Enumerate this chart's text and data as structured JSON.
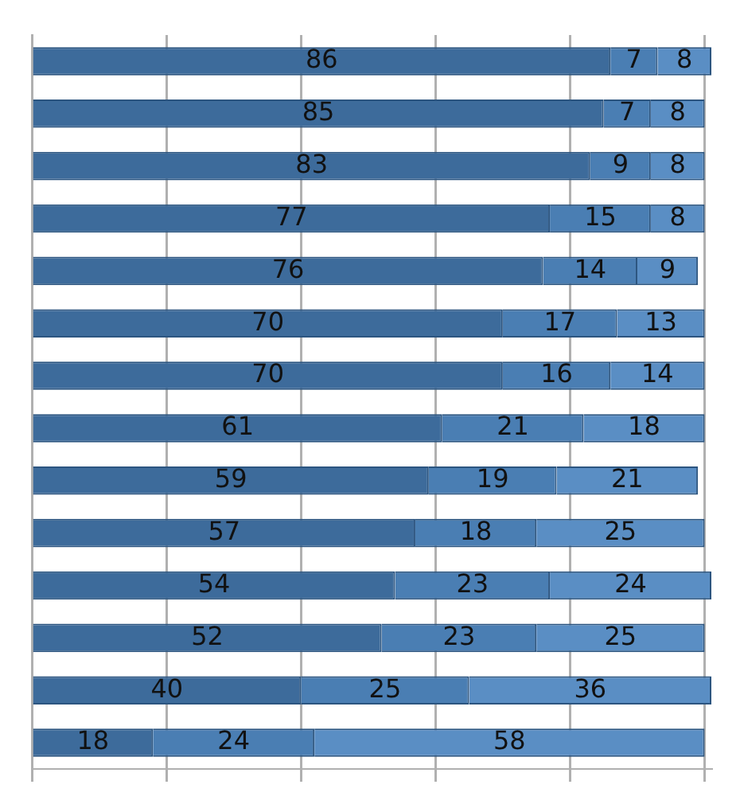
{
  "chart_data": {
    "type": "bar",
    "orientation": "horizontal",
    "stacked": true,
    "data_labels": true,
    "grid": "x",
    "tick_labels": false,
    "legend": false,
    "categories": [
      null,
      null,
      null,
      null,
      null,
      null,
      null,
      null,
      null,
      null,
      null,
      null,
      null,
      null
    ],
    "xlim": [
      0,
      101
    ],
    "xticks": [
      {
        "value": 0,
        "label": null
      },
      {
        "value": 20,
        "label": null
      },
      {
        "value": 40,
        "label": null
      },
      {
        "value": 60,
        "label": null
      },
      {
        "value": 80,
        "label": null
      },
      {
        "value": 100,
        "label": null
      }
    ],
    "series": [
      {
        "color": "#3d6b9b",
        "values": [
          86,
          85,
          83,
          77,
          76,
          70,
          70,
          61,
          59,
          57,
          54,
          52,
          40,
          18
        ]
      },
      {
        "color": "#4a7eb3",
        "values": [
          7,
          7,
          9,
          15,
          14,
          17,
          16,
          21,
          19,
          18,
          23,
          23,
          25,
          24
        ]
      },
      {
        "color": "#5a8ec4",
        "values": [
          8,
          8,
          8,
          8,
          9,
          13,
          14,
          18,
          21,
          25,
          24,
          25,
          36,
          58
        ]
      }
    ]
  }
}
